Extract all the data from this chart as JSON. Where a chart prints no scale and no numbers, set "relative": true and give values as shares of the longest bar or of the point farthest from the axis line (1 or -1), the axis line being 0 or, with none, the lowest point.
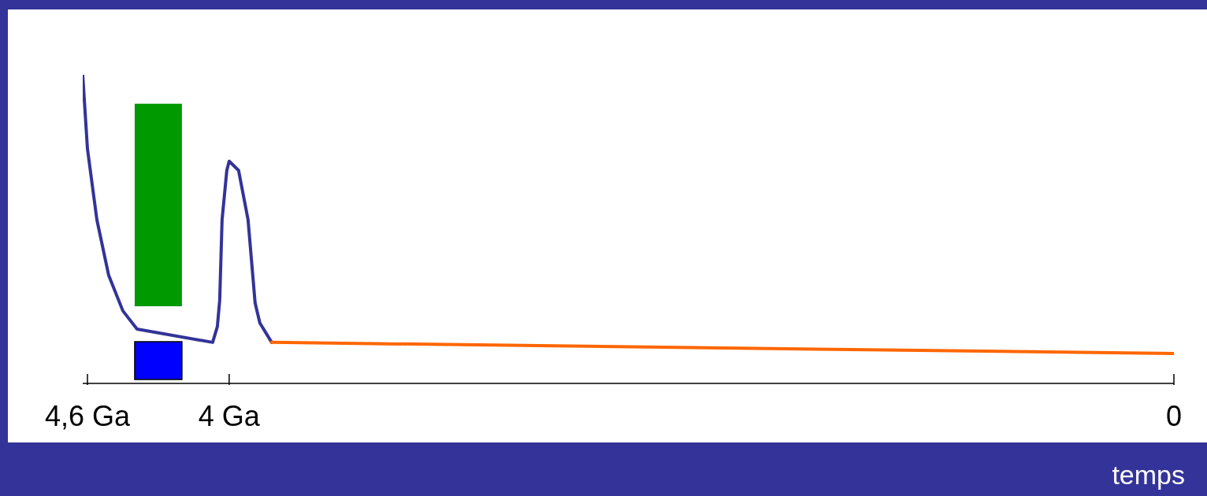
{
  "chart_data": {
    "type": "line",
    "xlabel": "temps",
    "relative": true,
    "xlim": [
      4.62,
      0
    ],
    "xticks": [
      {
        "value": 4.6,
        "label": "4,6 Ga"
      },
      {
        "value": 4,
        "label": "4 Ga"
      },
      0
    ],
    "series": [
      {
        "type": "line",
        "color": "#333399",
        "x": [
          4.62,
          4.6,
          4.56,
          4.51,
          4.45,
          4.39,
          4.07,
          4.05,
          4.04,
          4.03,
          4.01,
          4.0,
          3.96,
          3.92,
          3.89,
          3.87,
          3.82
        ],
        "values": [
          1.0,
          0.76,
          0.53,
          0.35,
          0.235,
          0.176,
          0.133,
          0.184,
          0.27,
          0.53,
          0.69,
          0.72,
          0.69,
          0.53,
          0.26,
          0.196,
          0.133
        ]
      },
      {
        "type": "line",
        "color": "#ff6600",
        "x": [
          3.82,
          0
        ],
        "values": [
          0.133,
          0.097
        ]
      }
    ],
    "bands": [
      {
        "axis": "x",
        "from": 4.4,
        "to": 4.2,
        "color": "#009900"
      },
      {
        "axis": "x",
        "from": 4.4,
        "to": 4.2,
        "color": "#0000ff"
      }
    ]
  }
}
